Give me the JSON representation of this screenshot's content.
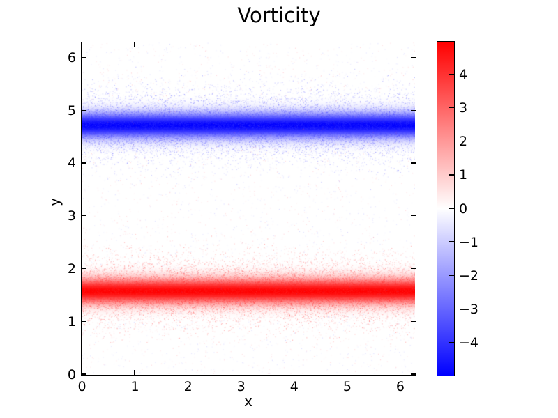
{
  "title": "Vorticity",
  "axes": {
    "xlabel": "x",
    "ylabel": "y",
    "xlim": [
      0,
      6.2832
    ],
    "ylim": [
      0,
      6.2832
    ],
    "x_tick_values": [
      0,
      1,
      2,
      3,
      4,
      5,
      6
    ],
    "x_tick_labels": [
      "0",
      "1",
      "2",
      "3",
      "4",
      "5",
      "6"
    ],
    "y_tick_values": [
      0,
      1,
      2,
      3,
      4,
      5,
      6
    ],
    "y_tick_labels": [
      "0",
      "1",
      "2",
      "3",
      "4",
      "5",
      "6"
    ]
  },
  "colorbar": {
    "vmin": -4.97,
    "vmax": 4.97,
    "tick_values": [
      4,
      3,
      2,
      1,
      0,
      -1,
      -2,
      -3,
      -4
    ],
    "tick_labels": [
      "4",
      "3",
      "2",
      "1",
      "0",
      "−1",
      "−2",
      "−3",
      "−4"
    ],
    "color_positive": "#ff0000",
    "color_zero": "#ffffff",
    "color_negative": "#0000ff"
  },
  "chart_data": {
    "type": "heatmap",
    "title": "Vorticity",
    "xlabel": "x",
    "ylabel": "y",
    "xlim": [
      0,
      6.2832
    ],
    "ylim": [
      0,
      6.2832
    ],
    "colormap": "bwr",
    "clim": [
      -4.97,
      4.97
    ],
    "grid": false,
    "legend": false,
    "bands": [
      {
        "name": "positive-vorticity-sheet",
        "y_center": 1.5708,
        "sigma": 0.16,
        "peak": 4.97,
        "color": "#ff0000"
      },
      {
        "name": "negative-vorticity-sheet",
        "y_center": 4.7124,
        "sigma": 0.16,
        "peak": -4.97,
        "color": "#0000ff"
      }
    ]
  }
}
